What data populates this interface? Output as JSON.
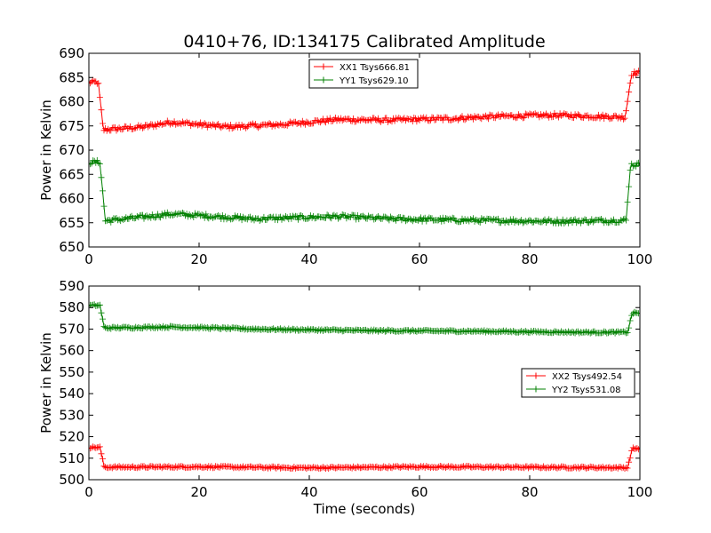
{
  "figure": {
    "title": "0410+76, ID:134175 Calibrated Amplitude"
  },
  "chart_data": [
    {
      "type": "line",
      "title": "0410+76, ID:134175 Calibrated Amplitude",
      "xlabel": "",
      "ylabel": "Power in Kelvin",
      "xlim": [
        0,
        100
      ],
      "ylim": [
        650,
        690
      ],
      "xticks": [
        0,
        20,
        40,
        60,
        80,
        100
      ],
      "yticks": [
        650,
        655,
        660,
        665,
        670,
        675,
        680,
        685,
        690
      ],
      "xtick_labels": [
        "0",
        "20",
        "40",
        "60",
        "80",
        "100"
      ],
      "ytick_labels": [
        "650",
        "655",
        "660",
        "665",
        "670",
        "675",
        "680",
        "685",
        "690"
      ],
      "legend_position": "upper center",
      "marker": "+",
      "series": [
        {
          "name": "XX1 Tsys666.81",
          "color": "#ff0000",
          "profile": [
            [
              0,
              684
            ],
            [
              1.7,
              684
            ],
            [
              2.6,
              674.2
            ],
            [
              10,
              674.8
            ],
            [
              15,
              675.8
            ],
            [
              25,
              674.8
            ],
            [
              35,
              675.3
            ],
            [
              45,
              676.3
            ],
            [
              55,
              676.2
            ],
            [
              65,
              676.5
            ],
            [
              75,
              677.0
            ],
            [
              85,
              677.2
            ],
            [
              97.3,
              676.8
            ],
            [
              98.5,
              685.8
            ],
            [
              100,
              686
            ]
          ]
        },
        {
          "name": "YY1 Tsys629.10",
          "color": "#008000",
          "profile": [
            [
              0,
              667.5
            ],
            [
              2.0,
              667.5
            ],
            [
              3.0,
              655.4
            ],
            [
              10,
              656.2
            ],
            [
              15,
              656.8
            ],
            [
              20,
              656.5
            ],
            [
              30,
              655.8
            ],
            [
              45,
              656.3
            ],
            [
              55,
              655.8
            ],
            [
              70,
              655.5
            ],
            [
              85,
              655.3
            ],
            [
              97.5,
              655.5
            ],
            [
              98.3,
              667
            ],
            [
              100,
              667
            ]
          ]
        }
      ]
    },
    {
      "type": "line",
      "title": "",
      "xlabel": "Time (seconds)",
      "ylabel": "Power in Kelvin",
      "xlim": [
        0,
        100
      ],
      "ylim": [
        500,
        590
      ],
      "xticks": [
        0,
        20,
        40,
        60,
        80,
        100
      ],
      "yticks": [
        500,
        510,
        520,
        530,
        540,
        550,
        560,
        570,
        580,
        590
      ],
      "xtick_labels": [
        "0",
        "20",
        "40",
        "60",
        "80",
        "100"
      ],
      "ytick_labels": [
        "500",
        "510",
        "520",
        "530",
        "540",
        "550",
        "560",
        "570",
        "580",
        "590"
      ],
      "legend_position": "center right",
      "marker": "+",
      "series": [
        {
          "name": "XX2 Tsys492.54",
          "color": "#ff0000",
          "profile": [
            [
              0,
              515
            ],
            [
              2.0,
              515
            ],
            [
              2.8,
              505.8
            ],
            [
              20,
              506
            ],
            [
              40,
              505.5
            ],
            [
              60,
              506
            ],
            [
              80,
              505.8
            ],
            [
              97.8,
              505.6
            ],
            [
              98.6,
              514.5
            ],
            [
              100,
              514.5
            ]
          ]
        },
        {
          "name": "YY2 Tsys531.08",
          "color": "#008000",
          "profile": [
            [
              0,
              581
            ],
            [
              2.0,
              581
            ],
            [
              2.8,
              570.5
            ],
            [
              15,
              571
            ],
            [
              30,
              570
            ],
            [
              50,
              569.3
            ],
            [
              70,
              569
            ],
            [
              90,
              568.5
            ],
            [
              97.8,
              568.5
            ],
            [
              98.6,
              577.5
            ],
            [
              100,
              577.5
            ]
          ]
        }
      ]
    }
  ]
}
